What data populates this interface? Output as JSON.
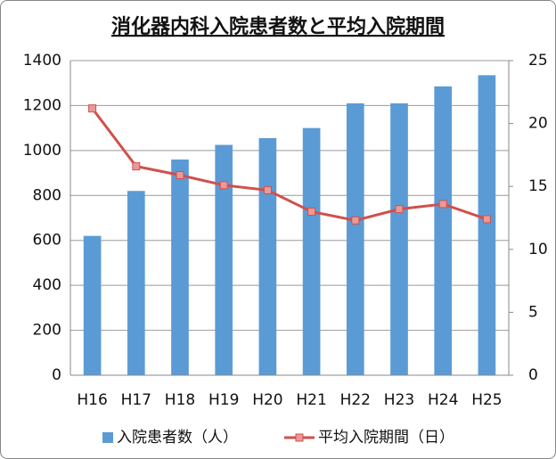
{
  "chart_data": {
    "type": "bar",
    "title": "消化器内科入院患者数と平均入院期間",
    "categories": [
      "H16",
      "H17",
      "H18",
      "H19",
      "H20",
      "H21",
      "H22",
      "H23",
      "H24",
      "H25"
    ],
    "series": [
      {
        "name": "入院患者数（人）",
        "color": "#5b9bd5",
        "values": [
          620,
          820,
          960,
          1025,
          1055,
          1100,
          1210,
          1210,
          1285,
          1335
        ]
      },
      {
        "name": "平均入院期間（日）",
        "color": "#d0504d",
        "type": "line",
        "axis": "y2",
        "values": [
          21.2,
          16.6,
          15.9,
          15.1,
          14.7,
          13.0,
          12.3,
          13.2,
          13.6,
          12.4
        ]
      }
    ],
    "ylim": [
      0,
      1400
    ],
    "yticks": [
      0,
      200,
      400,
      600,
      800,
      1000,
      1200,
      1400
    ],
    "y2lim": [
      0,
      25
    ],
    "y2ticks": [
      0,
      5,
      10,
      15,
      20,
      25
    ],
    "grid": true,
    "legend": "bottom"
  }
}
